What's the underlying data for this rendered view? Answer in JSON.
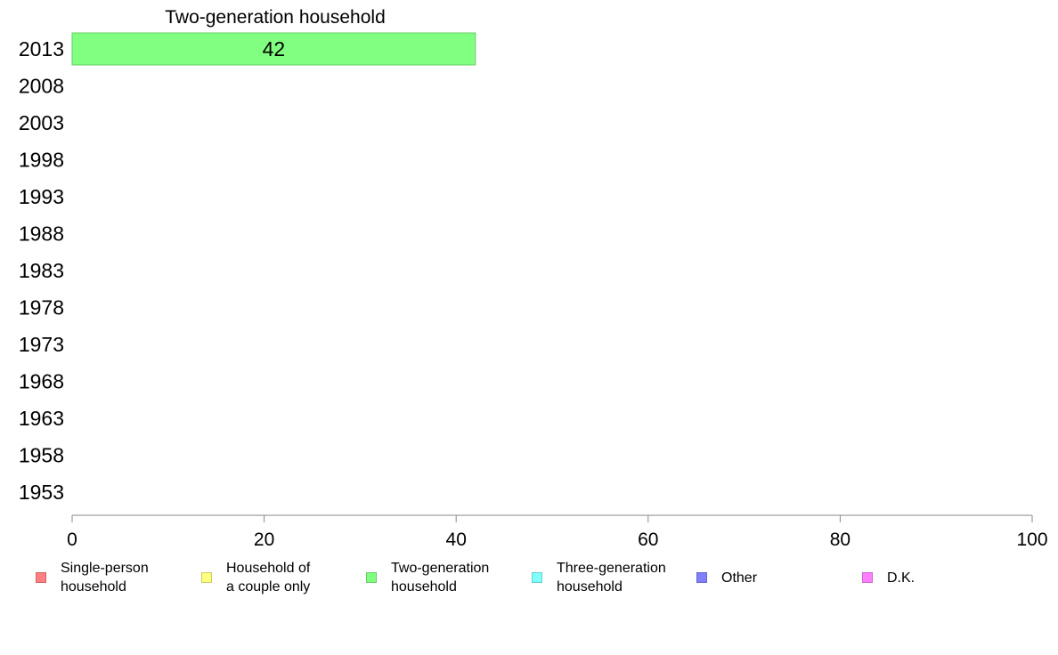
{
  "chart_data": {
    "type": "bar",
    "orientation": "horizontal",
    "stacked": true,
    "categories": [
      "2013",
      "2008",
      "2003",
      "1998",
      "1993",
      "1988",
      "1983",
      "1978",
      "1973",
      "1968",
      "1963",
      "1958",
      "1953"
    ],
    "series": [
      {
        "name": "Single-person\nhousehold",
        "color": "#ff8080",
        "border": "#cc6666",
        "values": [
          null,
          null,
          null,
          null,
          null,
          null,
          null,
          null,
          null,
          null,
          null,
          null,
          null
        ]
      },
      {
        "name": "Household of\na couple only",
        "color": "#ffff80",
        "border": "#cccc66",
        "values": [
          null,
          null,
          null,
          null,
          null,
          null,
          null,
          null,
          null,
          null,
          null,
          null,
          null
        ]
      },
      {
        "name": "Two-generation\nhousehold",
        "color": "#80ff80",
        "border": "#66cc66",
        "values": [
          42,
          null,
          null,
          null,
          null,
          null,
          null,
          null,
          null,
          null,
          null,
          null,
          null
        ]
      },
      {
        "name": "Three-generation\nhousehold",
        "color": "#80ffff",
        "border": "#66cccc",
        "values": [
          null,
          null,
          null,
          null,
          null,
          null,
          null,
          null,
          null,
          null,
          null,
          null,
          null
        ]
      },
      {
        "name": "Other",
        "color": "#8080ff",
        "border": "#6666cc",
        "values": [
          null,
          null,
          null,
          null,
          null,
          null,
          null,
          null,
          null,
          null,
          null,
          null,
          null
        ]
      },
      {
        "name": "D.K.",
        "color": "#ff80ff",
        "border": "#cc66cc",
        "values": [
          null,
          null,
          null,
          null,
          null,
          null,
          null,
          null,
          null,
          null,
          null,
          null,
          null
        ]
      }
    ],
    "segment_header": "Two-generation household",
    "xlim": [
      0,
      100
    ],
    "xticks": [
      0,
      20,
      40,
      60,
      80,
      100
    ],
    "grid": false,
    "legend_position": "bottom"
  }
}
